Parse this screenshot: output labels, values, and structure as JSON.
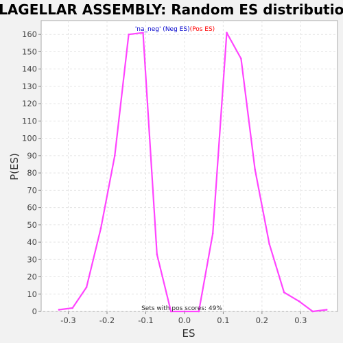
{
  "chart_data": {
    "type": "line",
    "title": "FLAGELLAR ASSEMBLY: Random ES distribution",
    "xlabel": "ES",
    "ylabel": "P(ES)",
    "xlim": [
      -0.37,
      0.395
    ],
    "ylim": [
      0,
      168
    ],
    "xticks": [
      -0.3,
      -0.2,
      -0.1,
      0.0,
      0.1,
      0.2,
      0.3
    ],
    "xtick_labels": [
      "-0.3",
      "-0.2",
      "-0.1",
      "0.0",
      "0.1",
      "0.2",
      "0.3"
    ],
    "yticks": [
      0,
      10,
      20,
      30,
      40,
      50,
      60,
      70,
      80,
      90,
      100,
      110,
      120,
      130,
      140,
      150,
      160
    ],
    "ytick_labels": [
      "0",
      "10",
      "20",
      "30",
      "40",
      "50",
      "60",
      "70",
      "80",
      "90",
      "100",
      "110",
      "120",
      "130",
      "140",
      "150",
      "160"
    ],
    "grid": true,
    "legend": {
      "placement": "top-center",
      "neg_text": "'na_neg' (Neg ES)",
      "pos_text": "(Pos ES)",
      "neg_color": "#0000cc",
      "pos_color": "#ff0000"
    },
    "annotation": "Sets with pos scores: 49%",
    "series": [
      {
        "color": "#ff44ff",
        "x": [
          -0.324,
          -0.289,
          -0.253,
          -0.216,
          -0.18,
          -0.144,
          -0.107,
          -0.071,
          -0.035,
          0.001,
          0.037,
          0.073,
          0.109,
          0.146,
          0.182,
          0.219,
          0.257,
          0.295,
          0.331,
          0.367
        ],
        "y": [
          1,
          2,
          14,
          48,
          90,
          160,
          161,
          33,
          0,
          0,
          0,
          45,
          161,
          146,
          82,
          39,
          11,
          6,
          0,
          1
        ]
      }
    ]
  }
}
